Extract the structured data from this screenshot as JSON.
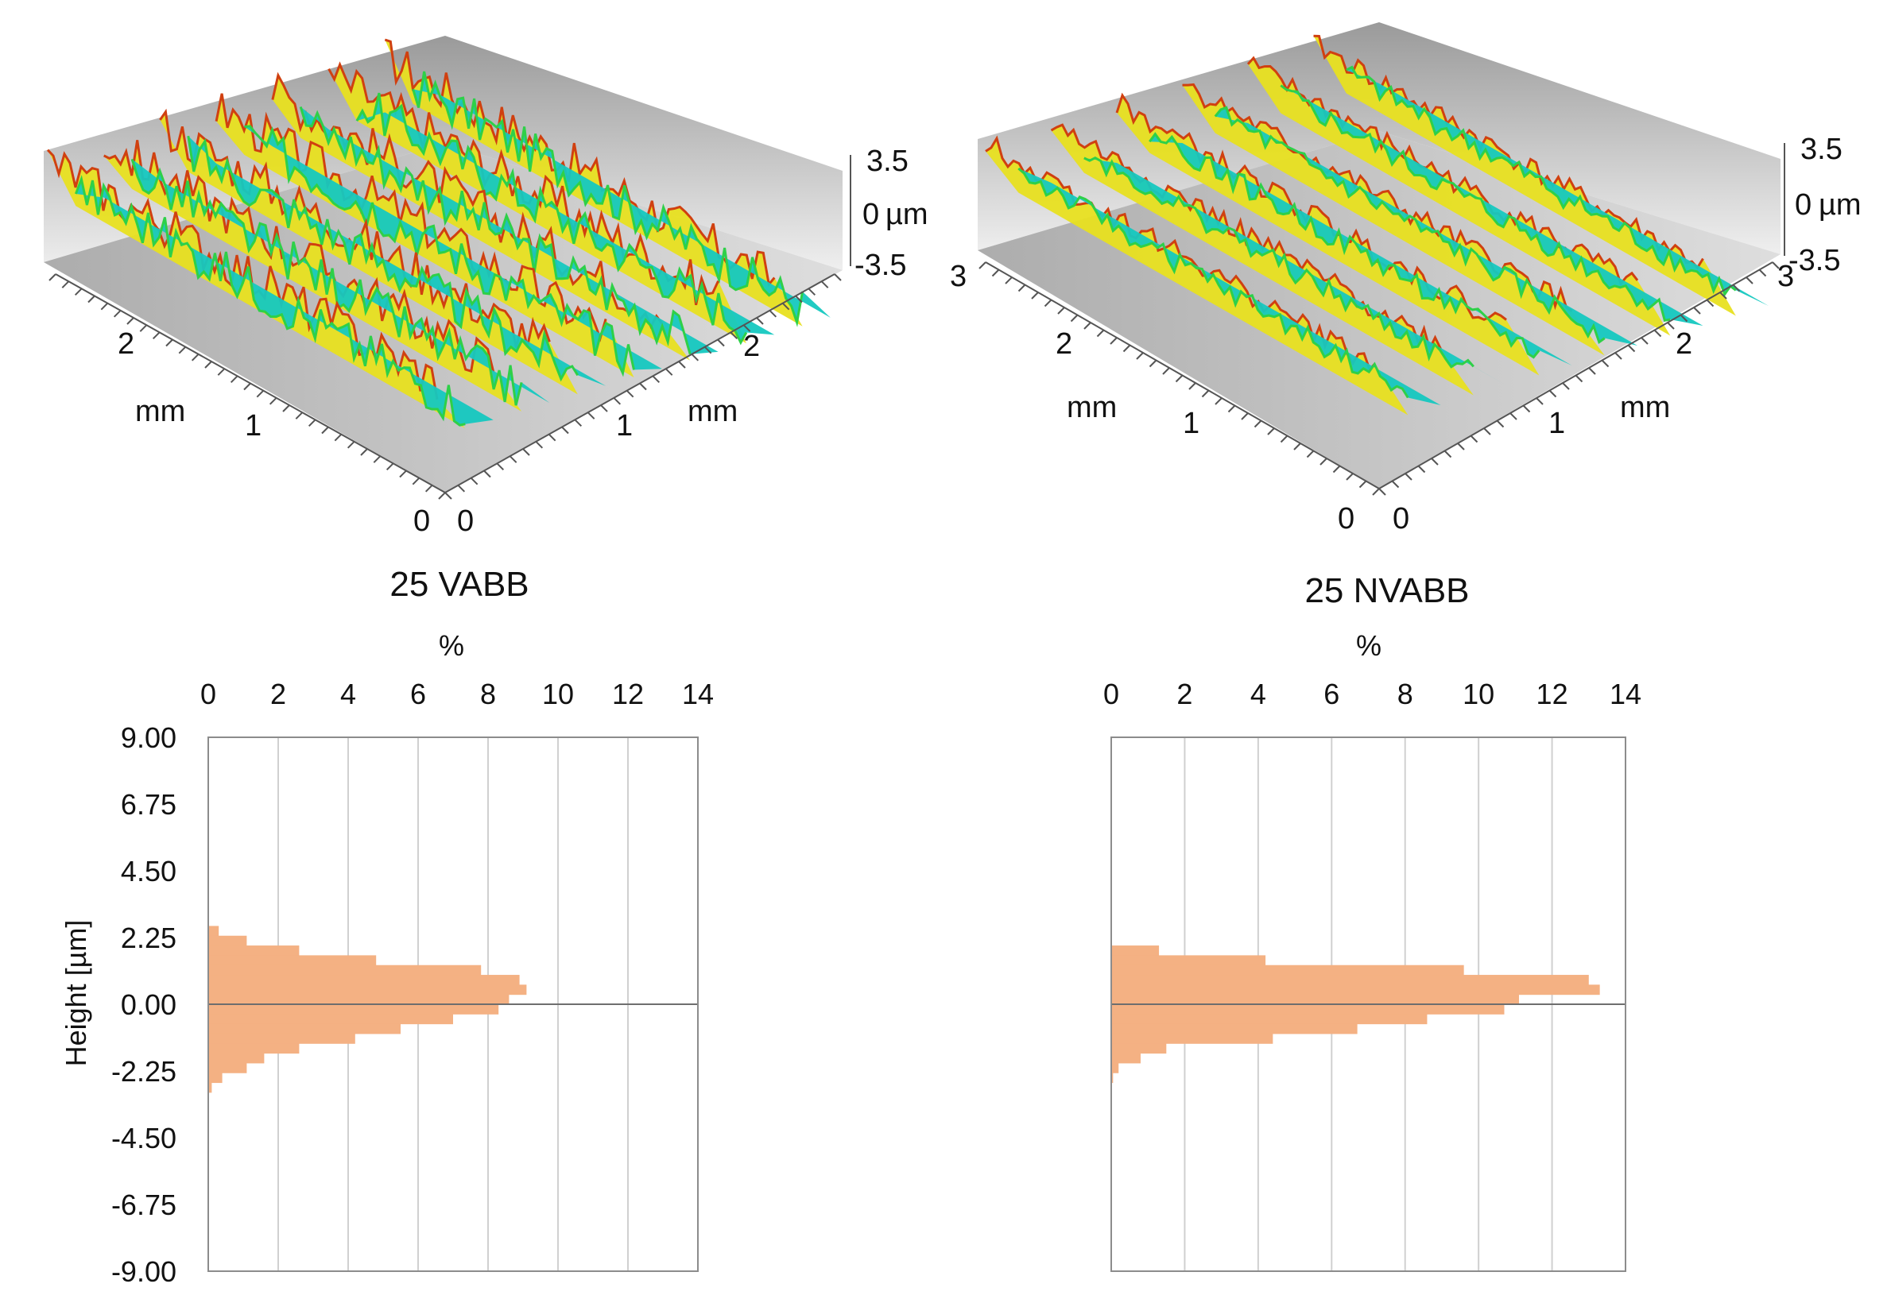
{
  "colors": {
    "bar_fill": "#F4B183",
    "grid": "#D0D0D0",
    "frame": "#8C8C8C",
    "zero_line": "#6E6E6E",
    "wall_dark": "#8A8A8A",
    "wall_light": "#EDEDED",
    "surface_low": "#1530C8",
    "surface_mid_low": "#15C8C0",
    "surface_mid": "#2ED048",
    "surface_mid_high": "#E8E020",
    "surface_high": "#D04010"
  },
  "surfaces": [
    {
      "title": "25 VABB",
      "x_unit": "mm",
      "y_unit": "mm",
      "x_ticks": [
        "0",
        "1",
        "2"
      ],
      "y_ticks": [
        "0",
        "1",
        "2"
      ],
      "z_ticks": [
        "3.5",
        "0",
        "-3.5"
      ],
      "z_unit": "µm"
    },
    {
      "title": "25 NVABB",
      "x_unit": "mm",
      "y_unit": "mm",
      "x_ticks": [
        "0",
        "1",
        "2",
        "3"
      ],
      "y_ticks": [
        "0",
        "1",
        "2",
        "3"
      ],
      "z_ticks": [
        "3.5",
        "0",
        "-3.5"
      ],
      "z_unit": "µm"
    }
  ],
  "chart_data": [
    {
      "type": "bar",
      "orientation": "horizontal",
      "title": "",
      "xlabel": "%",
      "ylabel": "Height [µm]",
      "xlim": [
        0,
        14
      ],
      "x_ticks": [
        "0",
        "2",
        "4",
        "6",
        "8",
        "10",
        "12",
        "14"
      ],
      "ylim": [
        -9,
        9
      ],
      "y_ticks": [
        "9.00",
        "6.75",
        "4.50",
        "2.25",
        "0.00",
        "-2.25",
        "-4.50",
        "-6.75",
        "-9.00"
      ],
      "bin_width": 0.33,
      "bins": [
        2.31,
        1.98,
        1.65,
        1.32,
        0.99,
        0.66,
        0.33,
        0.0,
        -0.33,
        -0.66,
        -0.99,
        -1.32,
        -1.65,
        -1.98,
        -2.31,
        -2.64,
        -2.97
      ],
      "values": [
        0.3,
        1.1,
        2.6,
        4.8,
        7.8,
        8.9,
        9.1,
        8.6,
        8.3,
        7.0,
        5.5,
        4.2,
        2.6,
        1.6,
        1.1,
        0.4,
        0.1
      ]
    },
    {
      "type": "bar",
      "orientation": "horizontal",
      "title": "",
      "xlabel": "%",
      "ylabel": "",
      "xlim": [
        0,
        14
      ],
      "x_ticks": [
        "0",
        "2",
        "4",
        "6",
        "8",
        "10",
        "12",
        "14"
      ],
      "ylim": [
        -9,
        9
      ],
      "y_ticks": [],
      "bin_width": 0.33,
      "bins": [
        1.65,
        1.32,
        0.99,
        0.66,
        0.33,
        0.0,
        -0.33,
        -0.66,
        -0.99,
        -1.32,
        -1.65,
        -1.98,
        -2.31,
        -2.64
      ],
      "values": [
        1.3,
        4.2,
        9.6,
        13.0,
        13.3,
        11.1,
        10.7,
        8.6,
        6.7,
        4.4,
        1.5,
        0.8,
        0.2,
        0.05
      ]
    }
  ]
}
